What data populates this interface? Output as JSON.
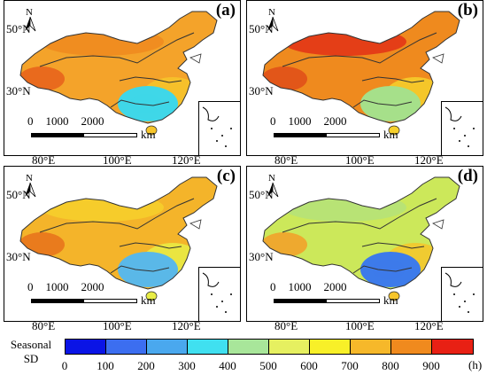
{
  "panels": [
    {
      "id": "a",
      "label": "(a)",
      "base": "#f4a32a",
      "north": "#ee8a1e",
      "south": "#f6c52a",
      "center": "#3fd7e8",
      "west": "#e8641c"
    },
    {
      "id": "b",
      "label": "(b)",
      "base": "#ef8a1e",
      "north": "#e23016",
      "south": "#f6d02c",
      "center": "#a6e08a",
      "west": "#e05018"
    },
    {
      "id": "c",
      "label": "(c)",
      "base": "#f4b42a",
      "north": "#f6d02c",
      "south": "#e8ed45",
      "center": "#5ab8e8",
      "west": "#e8741c"
    },
    {
      "id": "d",
      "label": "(d)",
      "base": "#cce85a",
      "north": "#b4e27a",
      "south": "#f6c52a",
      "center": "#3d7bea",
      "west": "#f2a22a"
    }
  ],
  "map_labels": {
    "lat_50": "50°N",
    "lat_30": "30°N",
    "lon": [
      "80°E",
      "100°E",
      "120°E"
    ],
    "north": "N",
    "scale_numbers": [
      "0",
      "1000",
      "2000"
    ],
    "scale_unit": "km"
  },
  "legend": {
    "title_line1": "Seasonal",
    "title_line2": "SD",
    "unit": "(h)",
    "ticks": [
      "0",
      "100",
      "200",
      "300",
      "400",
      "500",
      "600",
      "700",
      "800",
      "900"
    ],
    "colors": [
      "#0a14e6",
      "#3c6ef0",
      "#4aa8ee",
      "#40e0f0",
      "#a8e69a",
      "#e6f060",
      "#f8f028",
      "#f6b82a",
      "#f08a1e",
      "#e82014"
    ]
  }
}
